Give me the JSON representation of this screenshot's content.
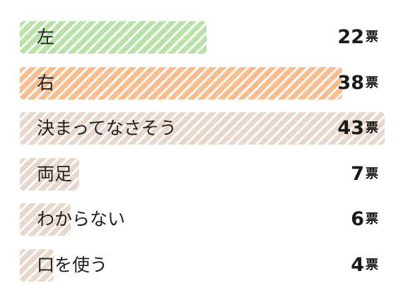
{
  "colors": {
    "green": "#b9e3a6",
    "orange": "#fbbd8e",
    "beige": "#e8d7cc"
  },
  "chart_data": {
    "type": "bar",
    "orientation": "horizontal",
    "title": "",
    "xlabel": "",
    "ylabel": "",
    "unit": "票",
    "xlim": [
      0,
      45
    ],
    "grid": false,
    "categories": [
      "左",
      "右",
      "決まってなさそう",
      "両足",
      "わからない",
      "口を使う"
    ],
    "values": [
      22,
      38,
      43,
      7,
      6,
      4
    ],
    "bar_colors": [
      "green",
      "orange",
      "beige",
      "beige",
      "beige",
      "beige"
    ]
  }
}
